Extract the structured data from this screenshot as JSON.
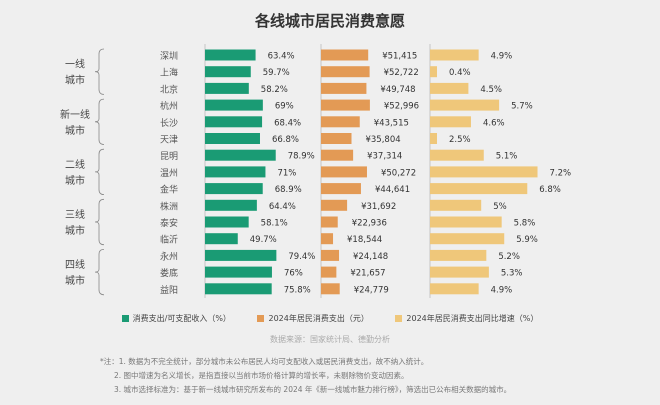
{
  "chart_data": {
    "type": "bar",
    "title": "各线城市居民消费意愿",
    "groups": [
      {
        "label": "一线\n城市",
        "cities": [
          "深圳",
          "上海",
          "北京"
        ]
      },
      {
        "label": "新一线\n城市",
        "cities": [
          "杭州",
          "长沙",
          "天津"
        ]
      },
      {
        "label": "二线\n城市",
        "cities": [
          "昆明",
          "温州",
          "金华"
        ]
      },
      {
        "label": "三线\n城市",
        "cities": [
          "株洲",
          "泰安",
          "临沂"
        ]
      },
      {
        "label": "四线\n城市",
        "cities": [
          "永州",
          "娄底",
          "益阳"
        ]
      }
    ],
    "categories": [
      "深圳",
      "上海",
      "北京",
      "杭州",
      "长沙",
      "天津",
      "昆明",
      "温州",
      "金华",
      "株洲",
      "泰安",
      "临沂",
      "永州",
      "娄底",
      "益阳"
    ],
    "series": [
      {
        "name": "消费支出/可支配收入（%）",
        "color": "#1a9b74",
        "values": [
          63.4,
          59.7,
          58.2,
          69,
          68.4,
          66.8,
          78.9,
          71,
          68.9,
          64.4,
          58.1,
          49.7,
          79.4,
          76,
          75.8
        ],
        "labels": [
          "63.4%",
          "59.7%",
          "58.2%",
          "69%",
          "68.4%",
          "66.8%",
          "78.9%",
          "71%",
          "68.9%",
          "64.4%",
          "58.1%",
          "49.7%",
          "79.4%",
          "76%",
          "75.8%"
        ]
      },
      {
        "name": "2024年居民消费支出（元）",
        "color": "#e39a55",
        "values": [
          51415,
          52722,
          49748,
          52996,
          43515,
          35804,
          37314,
          50272,
          44641,
          31692,
          22936,
          18544,
          24148,
          21657,
          24779
        ],
        "labels": [
          "¥51,415",
          "¥52,722",
          "¥49,748",
          "¥52,996",
          "¥43,515",
          "¥35,804",
          "¥37,314",
          "¥50,272",
          "¥44,641",
          "¥31,692",
          "¥22,936",
          "¥18,544",
          "¥24,148",
          "¥21,657",
          "¥24,779"
        ]
      },
      {
        "name": "2024年居民消费支出同比增速（%）",
        "color": "#efc77a",
        "values": [
          4.9,
          0.4,
          4.5,
          5.7,
          4.6,
          2.5,
          5.1,
          7.2,
          6.8,
          5,
          5.8,
          5.9,
          5.2,
          5.3,
          4.9
        ],
        "labels": [
          "4.9%",
          "0.4%",
          "4.5%",
          "5.7%",
          "4.6%",
          "2.5%",
          "5.1%",
          "7.2%",
          "6.8%",
          "5%",
          "5.8%",
          "5.9%",
          "5.2%",
          "5.3%",
          "4.9%"
        ]
      }
    ],
    "legend_position": "bottom",
    "grid": false
  },
  "source": "数据来源：国家统计局、德勤分析",
  "notes": [
    "*注：1. 数据为不完全统计，部分城市未公布居民人均可支配收入或居民消费支出，故不纳入统计。",
    "2. 图中增速为名义增长，是指直接以当前市场价格计算的增长率，未剔除物价变动因素。",
    "3. 城市选择标准为：基于新一线城市研究所发布的 2024 年《新一线城市魅力排行榜》，筛选出已公布相关数据的城市。"
  ]
}
